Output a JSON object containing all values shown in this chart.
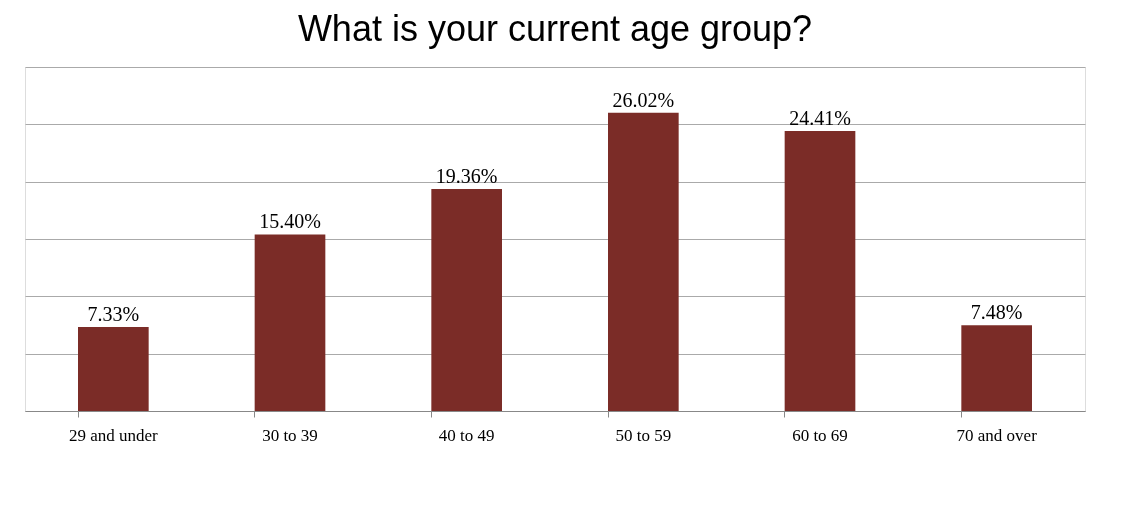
{
  "chart_data": {
    "type": "bar",
    "title": "What is your current age group?",
    "categories": [
      "29 and under",
      "30 to 39",
      "40 to 49",
      "50 to 59",
      "60 to 69",
      "70 and over"
    ],
    "values": [
      7.33,
      15.4,
      19.36,
      26.02,
      24.41,
      7.48
    ],
    "value_labels": [
      "7.33%",
      "15.40%",
      "19.36%",
      "26.02%",
      "24.41%",
      "7.48%"
    ],
    "color": "#7b2c27",
    "ylim": [
      0,
      30
    ],
    "yticks": [
      {
        "value": 0,
        "label": null
      },
      {
        "value": 5,
        "label": null
      },
      {
        "value": 10,
        "label": null
      },
      {
        "value": 15,
        "label": null
      },
      {
        "value": 20,
        "label": null
      },
      {
        "value": 25,
        "label": null
      },
      {
        "value": 30,
        "label": null
      }
    ],
    "grid": "y",
    "tick_labels": "x"
  }
}
